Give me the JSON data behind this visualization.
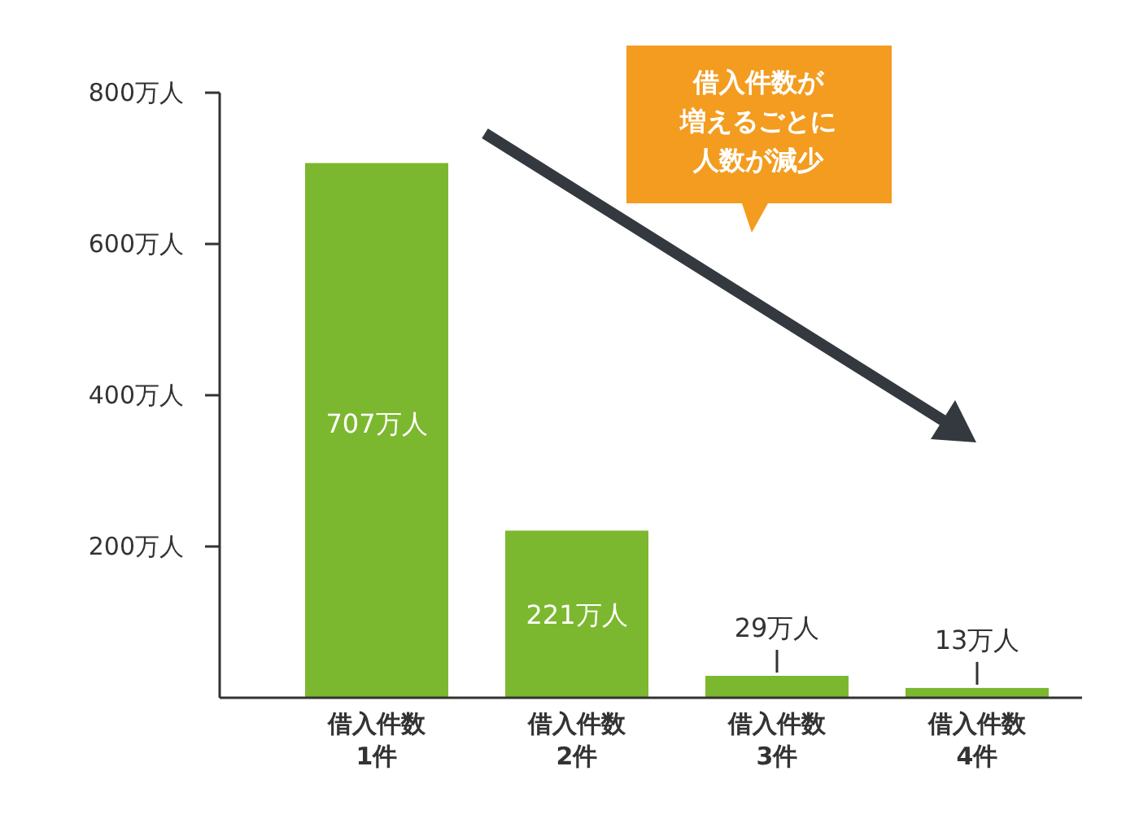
{
  "chart_data": {
    "type": "bar",
    "categories": [
      "借入件数\n1件",
      "借入件数\n2件",
      "借入件数\n3件",
      "借入件数\n4件"
    ],
    "values": [
      707,
      221,
      29,
      13
    ],
    "value_labels": [
      "707万人",
      "221万人",
      "29万人",
      "13万人"
    ],
    "color": "#7cb82f",
    "ylim": [
      0,
      800
    ],
    "yticks": [
      {
        "value": 200,
        "label": "200万人"
      },
      {
        "value": 400,
        "label": "400万人"
      },
      {
        "value": 600,
        "label": "600万人"
      },
      {
        "value": 800,
        "label": "800万人"
      }
    ],
    "annotations": [
      "借入件数が増えるごとに人数が減少"
    ],
    "grid": false
  }
}
